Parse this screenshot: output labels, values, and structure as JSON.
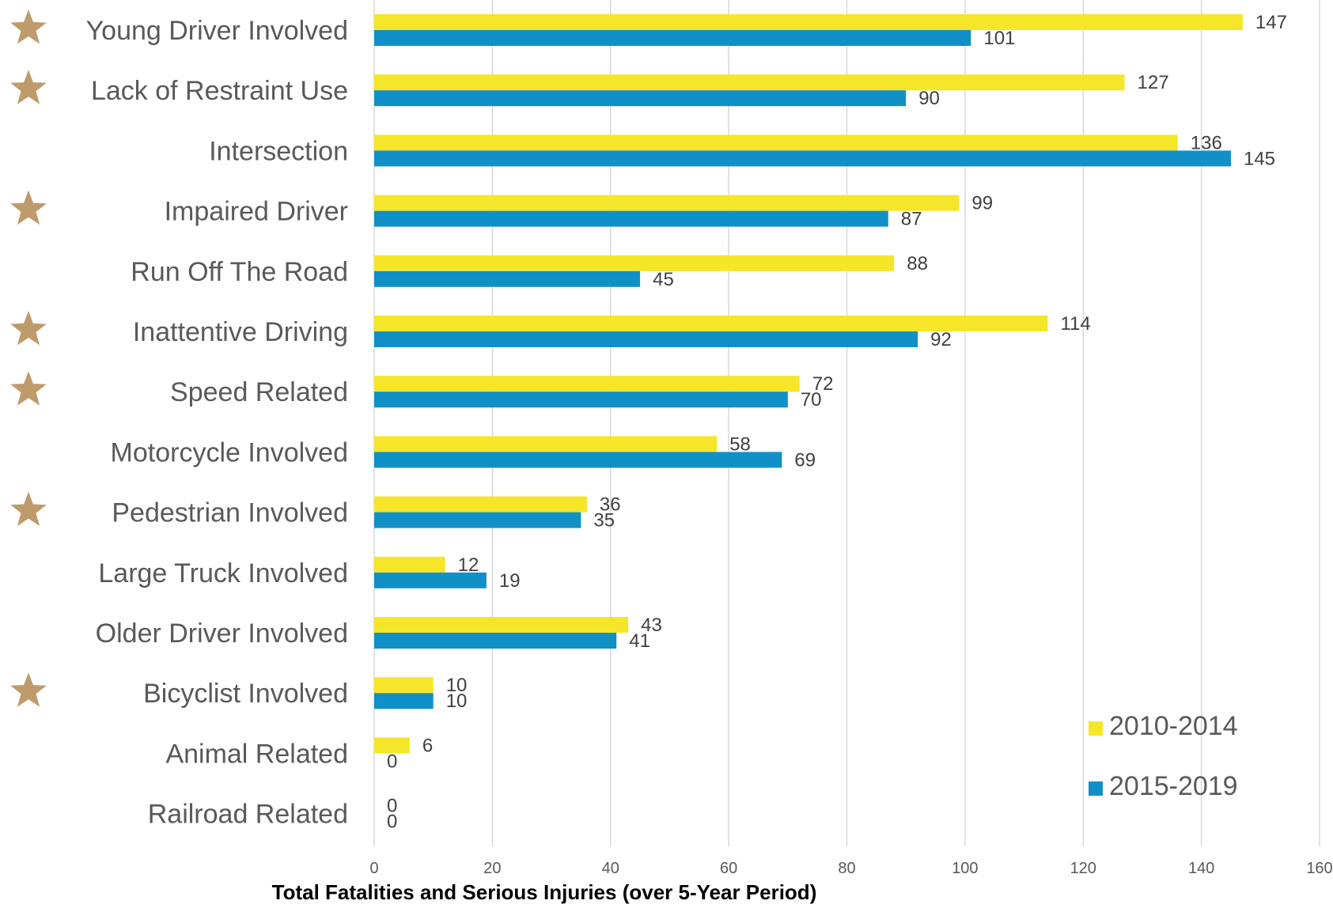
{
  "colors": {
    "series_2010_2014": "#f5e629",
    "series_2015_2019": "#1190c8",
    "star": "#bf9a6a",
    "grid": "#d9d9d9"
  },
  "icons": {
    "star": "star-icon"
  },
  "chart_data": {
    "type": "bar",
    "orientation": "horizontal",
    "xlabel": "Total Fatalities and Serious Injuries (over 5-Year Period)",
    "xlim": [
      0,
      160
    ],
    "xticks": [
      0,
      20,
      40,
      60,
      80,
      100,
      120,
      140,
      160
    ],
    "grid": true,
    "legend_position": "bottom-right",
    "categories": [
      "Young Driver Involved",
      "Lack of Restraint Use",
      "Intersection",
      "Impaired Driver",
      "Run Off The Road",
      "Inattentive Driving",
      "Speed Related",
      "Motorcycle Involved",
      "Pedestrian Involved",
      "Large Truck Involved",
      "Older Driver Involved",
      "Bicyclist Involved",
      "Animal Related",
      "Railroad Related"
    ],
    "starred": [
      true,
      true,
      false,
      true,
      false,
      true,
      true,
      false,
      true,
      false,
      false,
      true,
      false,
      false
    ],
    "series": [
      {
        "name": "2010-2014",
        "values": [
          147,
          127,
          136,
          99,
          88,
          114,
          72,
          58,
          36,
          12,
          43,
          10,
          6,
          0
        ]
      },
      {
        "name": "2015-2019",
        "values": [
          101,
          90,
          145,
          87,
          45,
          92,
          70,
          69,
          35,
          19,
          41,
          10,
          0,
          0
        ]
      }
    ]
  }
}
